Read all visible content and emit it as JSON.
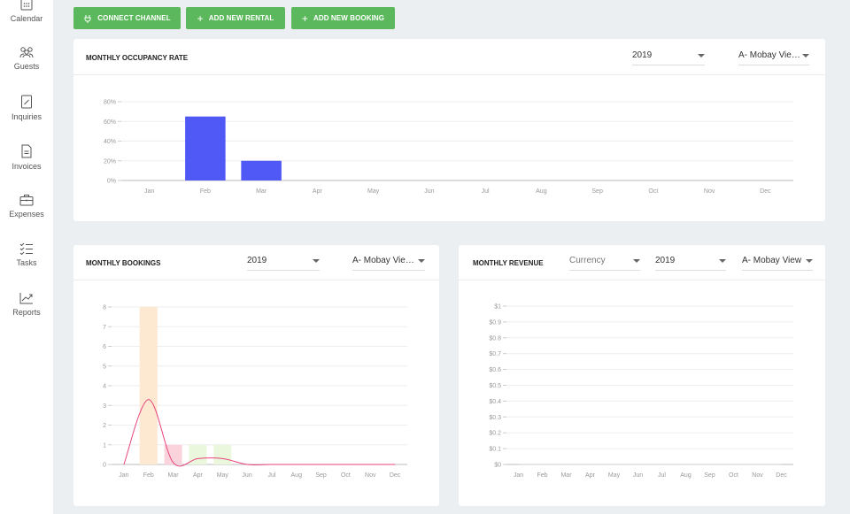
{
  "sidebar": {
    "items": [
      {
        "label": "Calendar",
        "icon": "calendar-icon"
      },
      {
        "label": "Guests",
        "icon": "guests-icon"
      },
      {
        "label": "Inquiries",
        "icon": "inquiries-icon"
      },
      {
        "label": "Invoices",
        "icon": "invoices-icon"
      },
      {
        "label": "Expenses",
        "icon": "expenses-icon"
      },
      {
        "label": "Tasks",
        "icon": "tasks-icon"
      },
      {
        "label": "Reports",
        "icon": "reports-icon"
      }
    ]
  },
  "toolbar": {
    "connect_label": "CONNECT CHANNEL",
    "add_rental_label": "ADD NEW RENTAL",
    "add_booking_label": "ADD NEW BOOKING",
    "accent": "#5cb85c"
  },
  "occupancy": {
    "title": "MONTHLY OCCUPANCY RATE",
    "year": "2019",
    "rental": "A- Mobay Vie…"
  },
  "bookings": {
    "title": "MONTHLY BOOKINGS",
    "year": "2019",
    "rental": "A- Mobay Vie…"
  },
  "revenue": {
    "title": "MONTHLY REVENUE",
    "currency_placeholder": "Currency",
    "year": "2019",
    "rental": "A- Mobay View"
  },
  "chart_data": [
    {
      "type": "bar",
      "title": "MONTHLY OCCUPANCY RATE",
      "categories": [
        "Jan",
        "Feb",
        "Mar",
        "Apr",
        "May",
        "Jun",
        "Jul",
        "Aug",
        "Sep",
        "Oct",
        "Nov",
        "Dec"
      ],
      "values": [
        0,
        65,
        20,
        0,
        0,
        0,
        0,
        0,
        0,
        0,
        0,
        0
      ],
      "yticks": [
        "0%",
        "20%",
        "40%",
        "60%",
        "80%"
      ],
      "ylim": [
        0,
        80
      ],
      "color": "#5059f5"
    },
    {
      "type": "bar",
      "title": "MONTHLY BOOKINGS",
      "categories": [
        "Jan",
        "Feb",
        "Mar",
        "Apr",
        "May",
        "Jun",
        "Jul",
        "Aug",
        "Sep",
        "Oct",
        "Nov",
        "Dec"
      ],
      "values": [
        0,
        8,
        1,
        1,
        1,
        0,
        0,
        0,
        0,
        0,
        0,
        0
      ],
      "bar_colors": [
        "#fde8d2",
        "#fde8d2",
        "#fbd3dc",
        "#eaf7dc",
        "#eaf7dc",
        "#eeeeee",
        "#eeeeee",
        "#eeeeee",
        "#eeeeee",
        "#eeeeee",
        "#eeeeee",
        "#eeeeee"
      ],
      "line_values": [
        0,
        3.3,
        0.1,
        0.3,
        0.3,
        0,
        0,
        0,
        0,
        0,
        0,
        0
      ],
      "line_color": "#e8427a",
      "yticks": [
        "0",
        "1",
        "2",
        "3",
        "4",
        "5",
        "6",
        "7",
        "8"
      ],
      "ylim": [
        0,
        8
      ]
    },
    {
      "type": "line",
      "title": "MONTHLY REVENUE",
      "categories": [
        "Jan",
        "Feb",
        "Mar",
        "Apr",
        "May",
        "Jun",
        "Jul",
        "Aug",
        "Sep",
        "Oct",
        "Nov",
        "Dec"
      ],
      "values": [
        0,
        0,
        0,
        0,
        0,
        0,
        0,
        0,
        0,
        0,
        0,
        0
      ],
      "yticks": [
        "$0",
        "$0.1",
        "$0.2",
        "$0.3",
        "$0.4",
        "$0.5",
        "$0.6",
        "$0.7",
        "$0.8",
        "$0.9",
        "$1"
      ],
      "ylim": [
        0,
        1
      ]
    }
  ]
}
